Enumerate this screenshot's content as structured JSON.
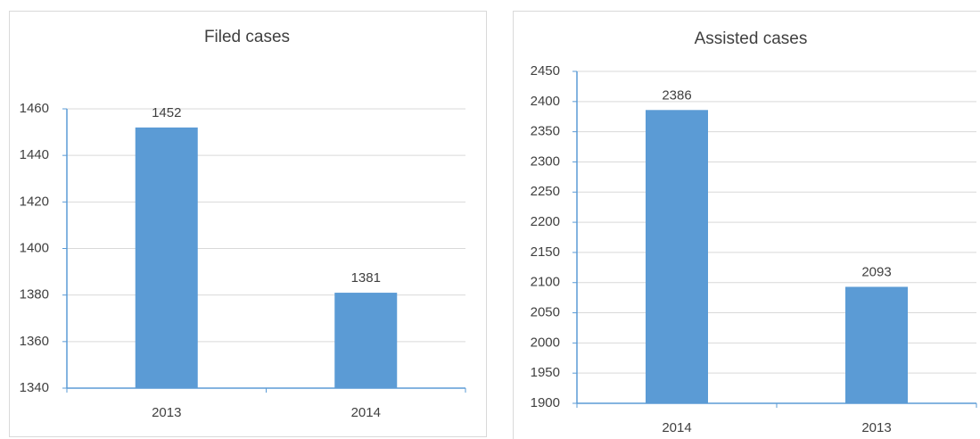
{
  "chart_data": [
    {
      "type": "bar",
      "title": "Filed cases",
      "categories": [
        "2013",
        "2014"
      ],
      "values": [
        1452,
        1381
      ],
      "color": "#5b9bd5",
      "ylim": [
        1340,
        1460
      ],
      "yticks": [
        1340,
        1360,
        1380,
        1400,
        1420,
        1440,
        1460
      ],
      "grid": true
    },
    {
      "type": "bar",
      "title": "Assisted cases",
      "categories": [
        "2014",
        "2013"
      ],
      "values": [
        2386,
        2093
      ],
      "color": "#5b9bd5",
      "ylim": [
        1900,
        2450
      ],
      "yticks": [
        1900,
        1950,
        2000,
        2050,
        2100,
        2150,
        2200,
        2250,
        2300,
        2350,
        2400,
        2450
      ],
      "grid": true
    }
  ]
}
